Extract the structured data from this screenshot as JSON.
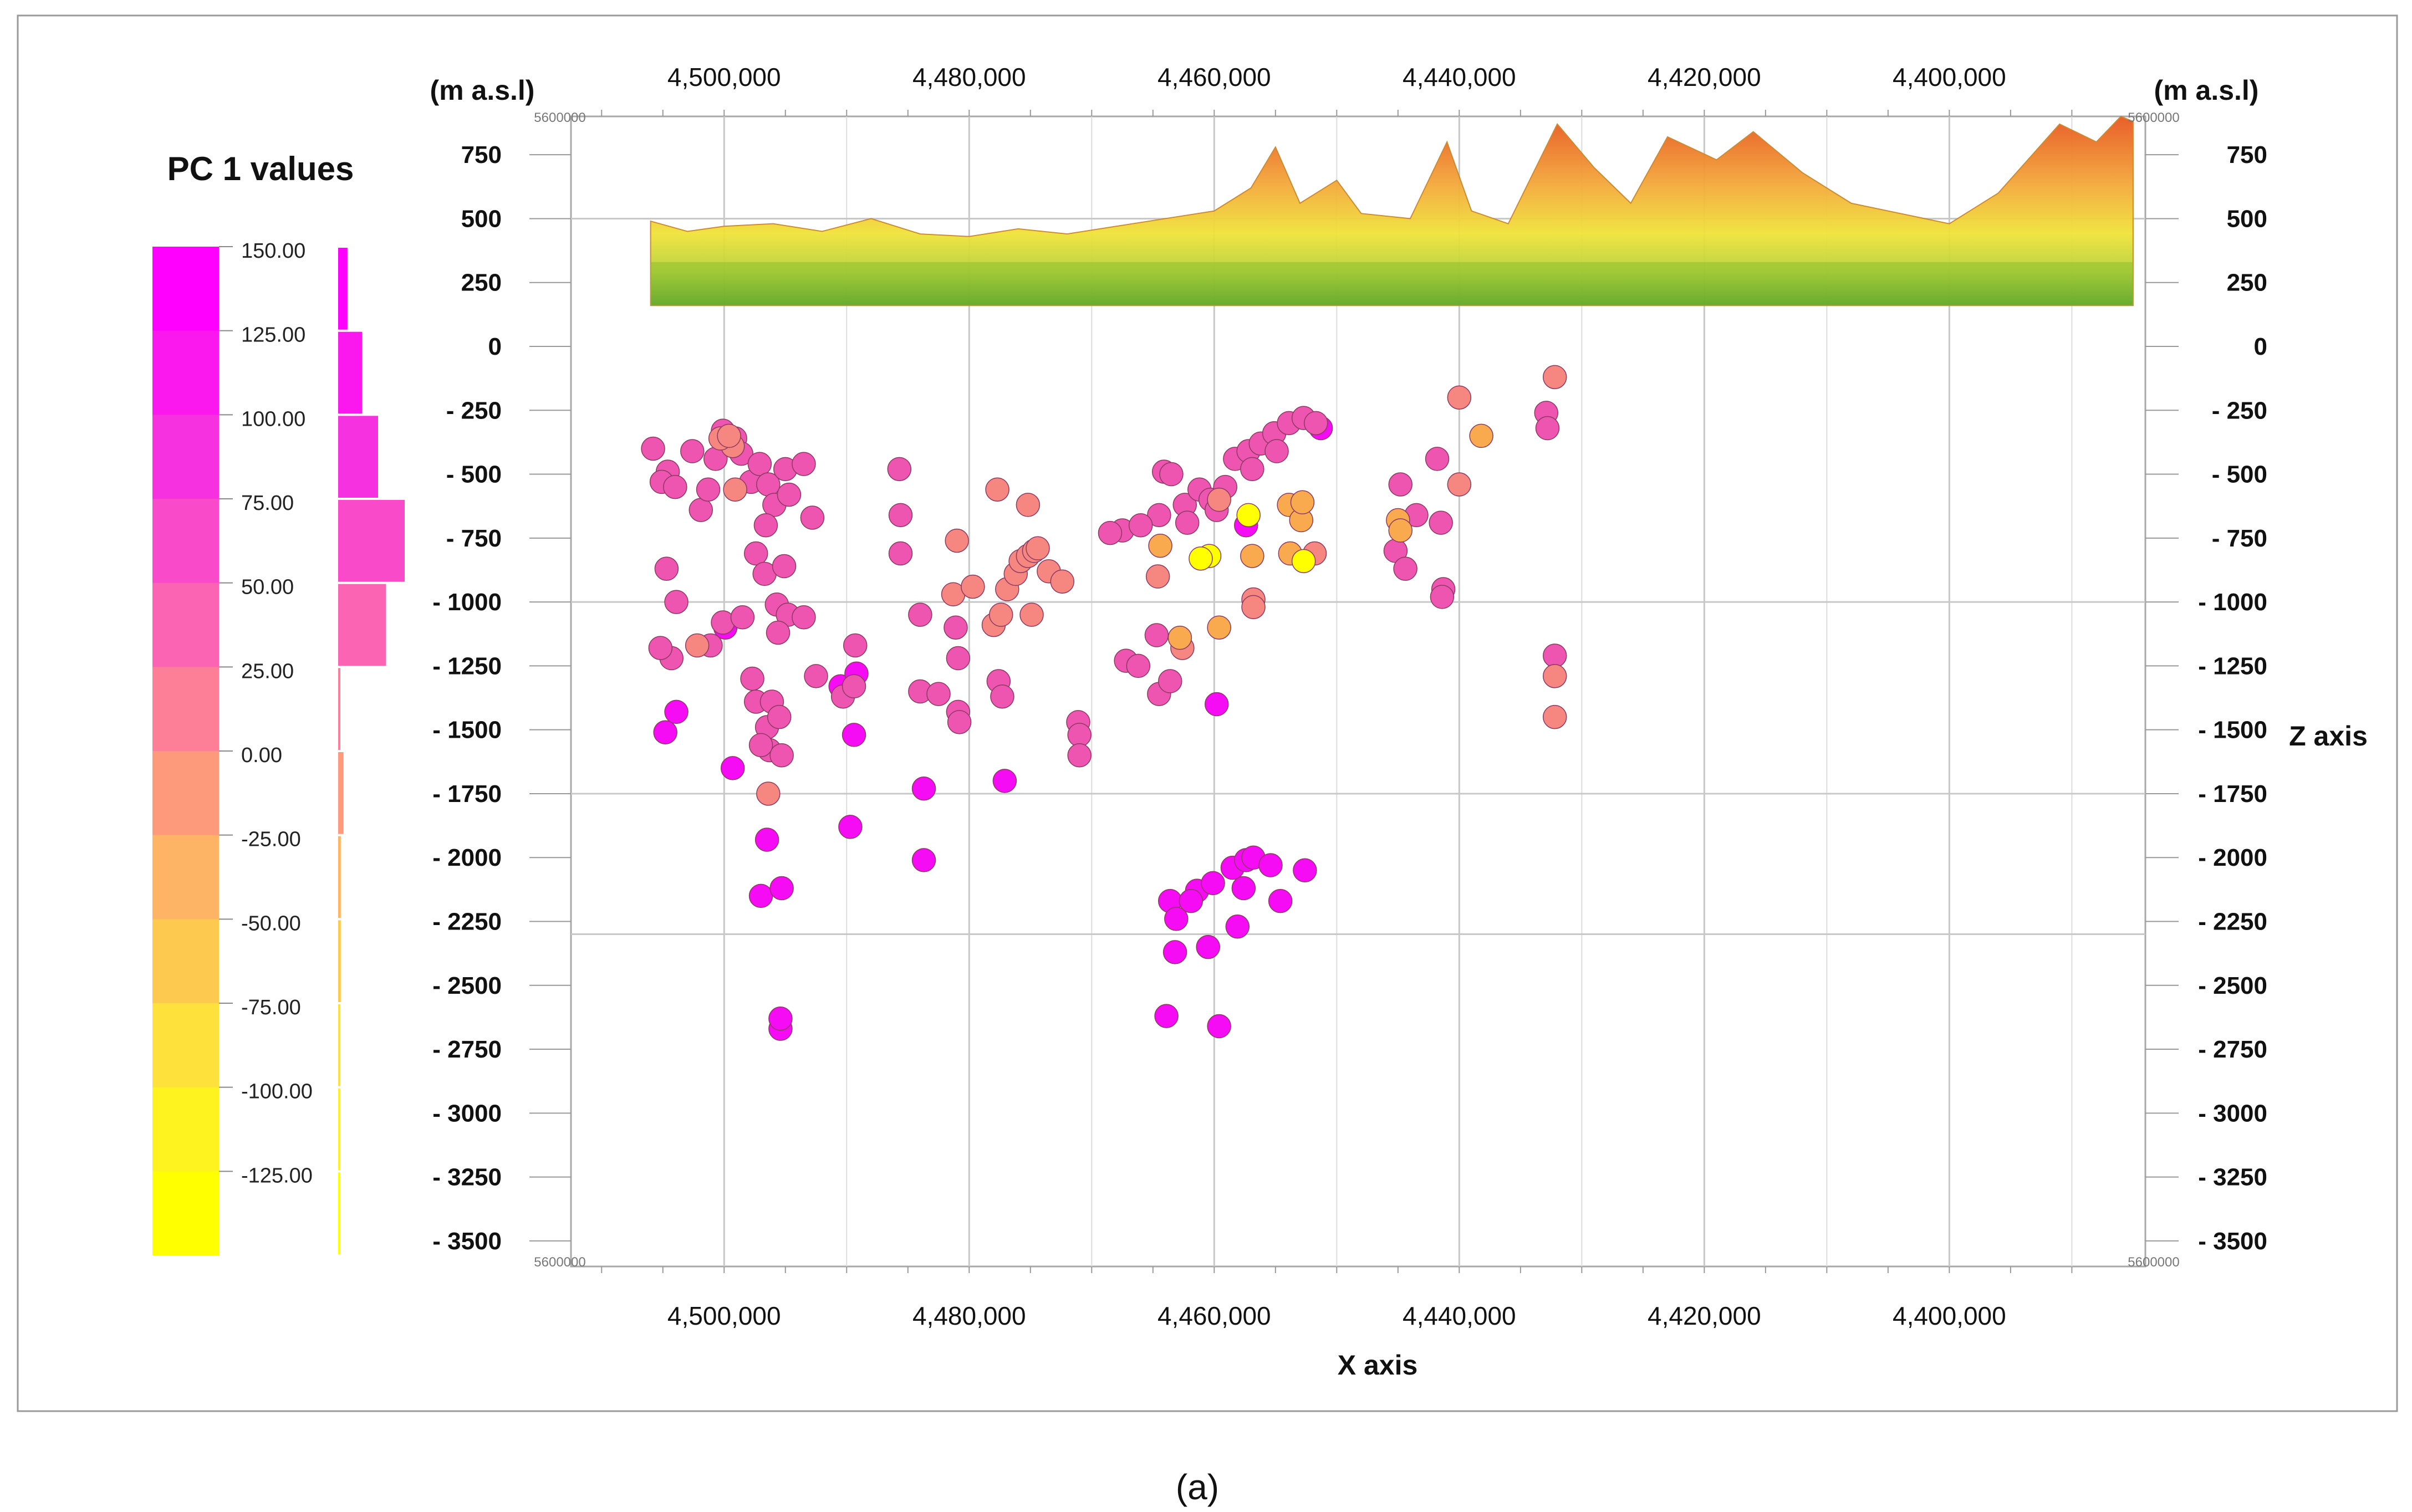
{
  "figure_label": "(a)",
  "legend": {
    "title": "PC 1 values",
    "classes": [
      {
        "label": "150.00",
        "color": "#ff00ff",
        "histogram": 0.035
      },
      {
        "label": "125.00",
        "color": "#fa18ef",
        "histogram": 0.09
      },
      {
        "label": "100.00",
        "color": "#f631df",
        "histogram": 0.15
      },
      {
        "label": "75.00",
        "color": "#f94aca",
        "histogram": 0.25
      },
      {
        "label": "50.00",
        "color": "#fb63b3",
        "histogram": 0.18
      },
      {
        "label": "25.00",
        "color": "#fd7f97",
        "histogram": 0.005
      },
      {
        "label": "0.00",
        "color": "#fd9a7b",
        "histogram": 0.02
      },
      {
        "label": "-25.00",
        "color": "#fdb464",
        "histogram": 0.01
      },
      {
        "label": "-50.00",
        "color": "#fdc94e",
        "histogram": 0.01
      },
      {
        "label": "-75.00",
        "color": "#fee13a",
        "histogram": 0.005
      },
      {
        "label": "-100.00",
        "color": "#fef21f",
        "histogram": 0.005
      },
      {
        "label": "-125.00",
        "color": "#ffff00",
        "histogram": 0.005
      }
    ]
  },
  "chart_data": {
    "type": "scatter",
    "title": "PC 1 values",
    "xlabel": "X axis",
    "ylabel": "Z axis",
    "unit_left": "(m a.s.l)",
    "unit_right": "(m a.s.l)",
    "corner_label": "5600000",
    "x_ticks": [
      "4,500,000",
      "4,480,000",
      "4,460,000",
      "4,440,000",
      "4,420,000",
      "4,400,000"
    ],
    "x_tick_values": [
      4500000,
      4480000,
      4460000,
      4440000,
      4420000,
      4400000
    ],
    "xlim": [
      4512500,
      4384000
    ],
    "z_ticks_left": [
      "750",
      "500",
      "250",
      "0",
      "- 250",
      "- 500",
      "- 750",
      "- 1000",
      "- 1250",
      "- 1500",
      "- 1750",
      "- 2000",
      "- 2250",
      "- 2500",
      "- 2750",
      "- 3000",
      "- 3250",
      "- 3500"
    ],
    "z_ticks_right": [
      "750",
      "500",
      "250",
      "0",
      "- 250",
      "- 500",
      "- 750",
      "- 1000",
      "- 1250",
      "- 1500",
      "- 1750",
      "- 2000",
      "- 2250",
      "- 2500",
      "- 2750",
      "- 3000",
      "- 3250",
      "- 3500"
    ],
    "z_tick_values": [
      750,
      500,
      250,
      0,
      -250,
      -500,
      -750,
      -1000,
      -1250,
      -1500,
      -1750,
      -2000,
      -2250,
      -2500,
      -2750,
      -3000,
      -3250,
      -3500
    ],
    "zlim": [
      900,
      -3600
    ],
    "terrain_profile": [
      {
        "x": 4506000,
        "z": 490
      },
      {
        "x": 4503000,
        "z": 450
      },
      {
        "x": 4500000,
        "z": 470
      },
      {
        "x": 4496000,
        "z": 480
      },
      {
        "x": 4492000,
        "z": 450
      },
      {
        "x": 4488000,
        "z": 500
      },
      {
        "x": 4484000,
        "z": 440
      },
      {
        "x": 4480000,
        "z": 430
      },
      {
        "x": 4476000,
        "z": 460
      },
      {
        "x": 4472000,
        "z": 440
      },
      {
        "x": 4468000,
        "z": 470
      },
      {
        "x": 4464000,
        "z": 500
      },
      {
        "x": 4460000,
        "z": 530
      },
      {
        "x": 4457000,
        "z": 620
      },
      {
        "x": 4455000,
        "z": 780
      },
      {
        "x": 4453000,
        "z": 560
      },
      {
        "x": 4450000,
        "z": 650
      },
      {
        "x": 4448000,
        "z": 520
      },
      {
        "x": 4444000,
        "z": 500
      },
      {
        "x": 4441000,
        "z": 800
      },
      {
        "x": 4439000,
        "z": 530
      },
      {
        "x": 4436000,
        "z": 480
      },
      {
        "x": 4432000,
        "z": 870
      },
      {
        "x": 4429000,
        "z": 700
      },
      {
        "x": 4426000,
        "z": 560
      },
      {
        "x": 4423000,
        "z": 820
      },
      {
        "x": 4419000,
        "z": 730
      },
      {
        "x": 4416000,
        "z": 840
      },
      {
        "x": 4412000,
        "z": 680
      },
      {
        "x": 4408000,
        "z": 560
      },
      {
        "x": 4404000,
        "z": 520
      },
      {
        "x": 4400000,
        "z": 480
      },
      {
        "x": 4396000,
        "z": 600
      },
      {
        "x": 4391000,
        "z": 870
      },
      {
        "x": 4388000,
        "z": 800
      },
      {
        "x": 4386000,
        "z": 900
      },
      {
        "x": 4385000,
        "z": 880
      }
    ],
    "terrain_base": 160,
    "series": [
      {
        "name": "PC 1 > 125",
        "color": "#f50cf5",
        "points": [
          {
            "x": 4504800,
            "z": -1510
          },
          {
            "x": 4503900,
            "z": -1430
          },
          {
            "x": 4499900,
            "z": -1100
          },
          {
            "x": 4499300,
            "z": -1650
          },
          {
            "x": 4496500,
            "z": -1930
          },
          {
            "x": 4497000,
            "z": -2150
          },
          {
            "x": 4495300,
            "z": -2120
          },
          {
            "x": 4495400,
            "z": -2670
          },
          {
            "x": 4495400,
            "z": -2630
          },
          {
            "x": 4490500,
            "z": -1330
          },
          {
            "x": 4489200,
            "z": -1280
          },
          {
            "x": 4489400,
            "z": -1520
          },
          {
            "x": 4489700,
            "z": -1880
          },
          {
            "x": 4483700,
            "z": -1730
          },
          {
            "x": 4483700,
            "z": -2010
          },
          {
            "x": 4477100,
            "z": -1700
          },
          {
            "x": 4463600,
            "z": -2170
          },
          {
            "x": 4463100,
            "z": -2240
          },
          {
            "x": 4463200,
            "z": -2370
          },
          {
            "x": 4461400,
            "z": -2130
          },
          {
            "x": 4460100,
            "z": -2100
          },
          {
            "x": 4458500,
            "z": -2040
          },
          {
            "x": 4457400,
            "z": -2010
          },
          {
            "x": 4456800,
            "z": -2000
          },
          {
            "x": 4457600,
            "z": -2120
          },
          {
            "x": 4458100,
            "z": -2270
          },
          {
            "x": 4460500,
            "z": -2350
          },
          {
            "x": 4459600,
            "z": -2660
          },
          {
            "x": 4463900,
            "z": -2620
          },
          {
            "x": 4455400,
            "z": -2030
          },
          {
            "x": 4454600,
            "z": -2170
          },
          {
            "x": 4452600,
            "z": -2050
          },
          {
            "x": 4461900,
            "z": -2170
          },
          {
            "x": 4459800,
            "z": -1400
          },
          {
            "x": 4457400,
            "z": -700
          },
          {
            "x": 4451300,
            "z": -320
          }
        ]
      },
      {
        "name": "PC 1 25 to 125",
        "color": "#ee55b0",
        "points": [
          {
            "x": 4505800,
            "z": -400
          },
          {
            "x": 4504600,
            "z": -490
          },
          {
            "x": 4505100,
            "z": -530
          },
          {
            "x": 4504000,
            "z": -550
          },
          {
            "x": 4502600,
            "z": -410
          },
          {
            "x": 4501900,
            "z": -640
          },
          {
            "x": 4501300,
            "z": -560
          },
          {
            "x": 4500700,
            "z": -440
          },
          {
            "x": 4500100,
            "z": -330
          },
          {
            "x": 4499100,
            "z": -360
          },
          {
            "x": 4498600,
            "z": -420
          },
          {
            "x": 4497800,
            "z": -530
          },
          {
            "x": 4497100,
            "z": -460
          },
          {
            "x": 4496400,
            "z": -540
          },
          {
            "x": 4495900,
            "z": -620
          },
          {
            "x": 4495000,
            "z": -480
          },
          {
            "x": 4496600,
            "z": -700
          },
          {
            "x": 4497400,
            "z": -810
          },
          {
            "x": 4496700,
            "z": -890
          },
          {
            "x": 4495100,
            "z": -860
          },
          {
            "x": 4495700,
            "z": -1010
          },
          {
            "x": 4494800,
            "z": -1050
          },
          {
            "x": 4495600,
            "z": -1120
          },
          {
            "x": 4492800,
            "z": -670
          },
          {
            "x": 4494700,
            "z": -580
          },
          {
            "x": 4493500,
            "z": -460
          },
          {
            "x": 4504700,
            "z": -870
          },
          {
            "x": 4503900,
            "z": -1000
          },
          {
            "x": 4504300,
            "z": -1220
          },
          {
            "x": 4505200,
            "z": -1180
          },
          {
            "x": 4501100,
            "z": -1170
          },
          {
            "x": 4500100,
            "z": -1080
          },
          {
            "x": 4498500,
            "z": -1060
          },
          {
            "x": 4497700,
            "z": -1300
          },
          {
            "x": 4497400,
            "z": -1390
          },
          {
            "x": 4496100,
            "z": -1390
          },
          {
            "x": 4496500,
            "z": -1490
          },
          {
            "x": 4495500,
            "z": -1450
          },
          {
            "x": 4496300,
            "z": -1580
          },
          {
            "x": 4495300,
            "z": -1600
          },
          {
            "x": 4497000,
            "z": -1560
          },
          {
            "x": 4493500,
            "z": -1060
          },
          {
            "x": 4492500,
            "z": -1290
          },
          {
            "x": 4490300,
            "z": -1370
          },
          {
            "x": 4489300,
            "z": -1170
          },
          {
            "x": 4489400,
            "z": -1330
          },
          {
            "x": 4485700,
            "z": -480
          },
          {
            "x": 4485600,
            "z": -660
          },
          {
            "x": 4485600,
            "z": -810
          },
          {
            "x": 4484000,
            "z": -1050
          },
          {
            "x": 4484000,
            "z": -1350
          },
          {
            "x": 4482500,
            "z": -1360
          },
          {
            "x": 4481100,
            "z": -1100
          },
          {
            "x": 4480900,
            "z": -1220
          },
          {
            "x": 4480900,
            "z": -1430
          },
          {
            "x": 4480800,
            "z": -1470
          },
          {
            "x": 4477600,
            "z": -1310
          },
          {
            "x": 4477300,
            "z": -1370
          },
          {
            "x": 4471100,
            "z": -1470
          },
          {
            "x": 4471000,
            "z": -1520
          },
          {
            "x": 4471000,
            "z": -1600
          },
          {
            "x": 4467200,
            "z": -1230
          },
          {
            "x": 4466200,
            "z": -1250
          },
          {
            "x": 4464700,
            "z": -1130
          },
          {
            "x": 4464500,
            "z": -1360
          },
          {
            "x": 4463600,
            "z": -1310
          },
          {
            "x": 4464100,
            "z": -490
          },
          {
            "x": 4463500,
            "z": -500
          },
          {
            "x": 4462400,
            "z": -620
          },
          {
            "x": 4461200,
            "z": -560
          },
          {
            "x": 4460300,
            "z": -600
          },
          {
            "x": 4459100,
            "z": -550
          },
          {
            "x": 4458300,
            "z": -440
          },
          {
            "x": 4457200,
            "z": -410
          },
          {
            "x": 4456200,
            "z": -380
          },
          {
            "x": 4455100,
            "z": -340
          },
          {
            "x": 4453900,
            "z": -300
          },
          {
            "x": 4452700,
            "z": -280
          },
          {
            "x": 4451700,
            "z": -300
          },
          {
            "x": 4454900,
            "z": -410
          },
          {
            "x": 4456900,
            "z": -480
          },
          {
            "x": 4459800,
            "z": -640
          },
          {
            "x": 4462200,
            "z": -690
          },
          {
            "x": 4464500,
            "z": -660
          },
          {
            "x": 4467500,
            "z": -720
          },
          {
            "x": 4468500,
            "z": -730
          },
          {
            "x": 4466000,
            "z": -700
          },
          {
            "x": 4444800,
            "z": -540
          },
          {
            "x": 4445200,
            "z": -800
          },
          {
            "x": 4444400,
            "z": -870
          },
          {
            "x": 4441500,
            "z": -690
          },
          {
            "x": 4441800,
            "z": -440
          },
          {
            "x": 4441300,
            "z": -950
          },
          {
            "x": 4441400,
            "z": -980
          },
          {
            "x": 4432900,
            "z": -260
          },
          {
            "x": 4432800,
            "z": -320
          },
          {
            "x": 4432200,
            "z": -1210
          },
          {
            "x": 4443500,
            "z": -660
          }
        ]
      },
      {
        "name": "PC 1 -25 to 25",
        "color": "#f58680",
        "points": [
          {
            "x": 4499300,
            "z": -390
          },
          {
            "x": 4500300,
            "z": -360
          },
          {
            "x": 4499600,
            "z": -350
          },
          {
            "x": 4499100,
            "z": -560
          },
          {
            "x": 4502200,
            "z": -1170
          },
          {
            "x": 4496400,
            "z": -1750
          },
          {
            "x": 4481300,
            "z": -970
          },
          {
            "x": 4479700,
            "z": -940
          },
          {
            "x": 4478000,
            "z": -1090
          },
          {
            "x": 4477400,
            "z": -1050
          },
          {
            "x": 4476900,
            "z": -950
          },
          {
            "x": 4476200,
            "z": -890
          },
          {
            "x": 4475800,
            "z": -840
          },
          {
            "x": 4475200,
            "z": -820
          },
          {
            "x": 4474700,
            "z": -800
          },
          {
            "x": 4474400,
            "z": -790
          },
          {
            "x": 4473500,
            "z": -880
          },
          {
            "x": 4477700,
            "z": -560
          },
          {
            "x": 4475200,
            "z": -620
          },
          {
            "x": 4474900,
            "z": -1050
          },
          {
            "x": 4472400,
            "z": -920
          },
          {
            "x": 4481000,
            "z": -760
          },
          {
            "x": 4464600,
            "z": -900
          },
          {
            "x": 4459600,
            "z": -600
          },
          {
            "x": 4432200,
            "z": -1290
          },
          {
            "x": 4432200,
            "z": -1450
          },
          {
            "x": 4440000,
            "z": -200
          },
          {
            "x": 4432200,
            "z": -120
          },
          {
            "x": 4440000,
            "z": -540
          },
          {
            "x": 4451800,
            "z": -810
          },
          {
            "x": 4456800,
            "z": -990
          },
          {
            "x": 4456800,
            "z": -1020
          },
          {
            "x": 4462600,
            "z": -1180
          }
        ]
      },
      {
        "name": "PC 1 -75 to -25",
        "color": "#f9aa4f",
        "points": [
          {
            "x": 4456900,
            "z": -820
          },
          {
            "x": 4453900,
            "z": -620
          },
          {
            "x": 4452900,
            "z": -680
          },
          {
            "x": 4452800,
            "z": -610
          },
          {
            "x": 4453800,
            "z": -810
          },
          {
            "x": 4445000,
            "z": -680
          },
          {
            "x": 4444800,
            "z": -720
          },
          {
            "x": 4438200,
            "z": -350
          },
          {
            "x": 4459600,
            "z": -1100
          },
          {
            "x": 4462800,
            "z": -1140
          },
          {
            "x": 4464400,
            "z": -780
          }
        ]
      },
      {
        "name": "PC 1 < -75",
        "color": "#ffff00",
        "points": [
          {
            "x": 4457200,
            "z": -660
          },
          {
            "x": 4460400,
            "z": -820
          },
          {
            "x": 4461100,
            "z": -830
          },
          {
            "x": 4452700,
            "z": -840
          }
        ]
      }
    ],
    "grid": true
  }
}
